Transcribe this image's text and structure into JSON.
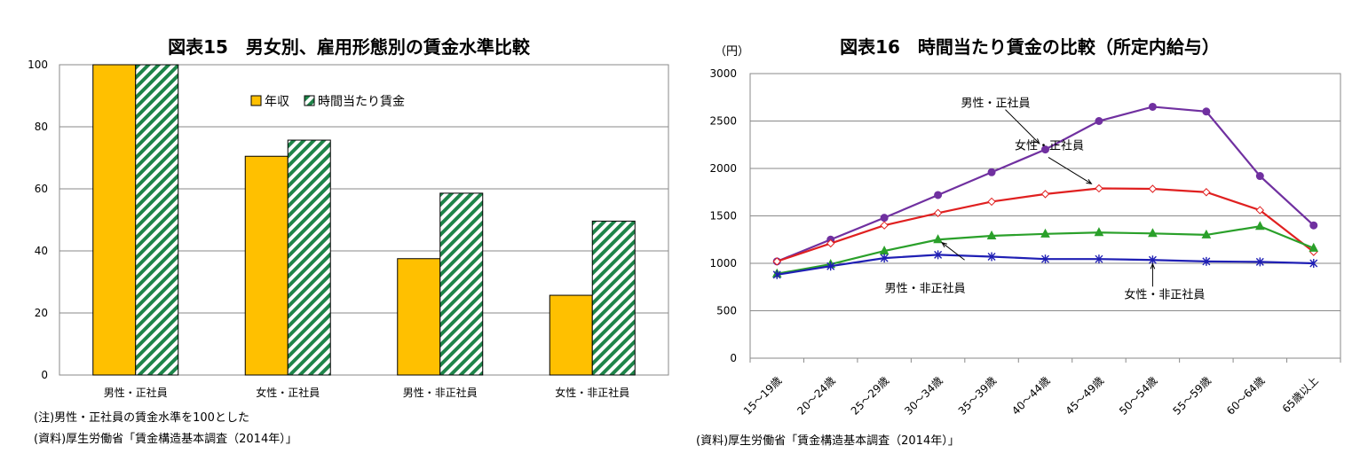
{
  "charts": {
    "left": {
      "title": "図表15　男女別、雇用形態別の賃金水準比較",
      "notes": [
        "(注)男性・正社員の賃金水準を100とした",
        "(資料)厚生労働省「賃金構造基本調査（2014年）」"
      ],
      "legend": [
        "年収",
        "時間当たり賃金"
      ]
    },
    "right": {
      "title": "図表16　時間当たり賃金の比較（所定内給与）",
      "unit": "（円）",
      "notes": [
        "(資料)厚生労働省「賃金構造基本調査（2014年）」"
      ],
      "series_labels": [
        "男性・正社員",
        "女性・正社員",
        "男性・非正社員",
        "女性・非正社員"
      ]
    }
  },
  "chart_data": [
    {
      "type": "bar",
      "title": "図表15　男女別、雇用形態別の賃金水準比較",
      "categories": [
        "男性・正社員",
        "女性・正社員",
        "男性・非正社員",
        "女性・非正社員"
      ],
      "series": [
        {
          "name": "年収",
          "values": [
            100,
            70.5,
            37.5,
            25.7
          ],
          "color": "#FFC000"
        },
        {
          "name": "時間当たり賃金",
          "values": [
            100,
            75.7,
            58.6,
            49.6
          ],
          "color": "#1E8449"
        }
      ],
      "ylim": [
        0,
        100
      ],
      "yticks": [
        0,
        20,
        40,
        60,
        80,
        100
      ],
      "xlabel": "",
      "ylabel": "",
      "legend_position": "top-center"
    },
    {
      "type": "line",
      "title": "図表16　時間当たり賃金の比較（所定内給与）",
      "categories": [
        "15～19歳",
        "20～24歳",
        "25～29歳",
        "30～34歳",
        "35～39歳",
        "40～44歳",
        "45～49歳",
        "50～54歳",
        "55～59歳",
        "60～64歳",
        "65歳以上"
      ],
      "series": [
        {
          "name": "男性・正社員",
          "values": [
            1020,
            1250,
            1480,
            1720,
            1960,
            2200,
            2500,
            2650,
            2600,
            1920,
            1400
          ],
          "color": "#7030A0",
          "marker": "circle"
        },
        {
          "name": "女性・正社員",
          "values": [
            1020,
            1210,
            1400,
            1530,
            1650,
            1730,
            1790,
            1785,
            1750,
            1560,
            1120
          ],
          "color": "#E02020",
          "marker": "diamond"
        },
        {
          "name": "男性・非正社員",
          "values": [
            890,
            990,
            1130,
            1250,
            1290,
            1310,
            1325,
            1315,
            1300,
            1390,
            1160
          ],
          "color": "#2AA02A",
          "marker": "triangle"
        },
        {
          "name": "女性・非正社員",
          "values": [
            880,
            970,
            1055,
            1090,
            1070,
            1045,
            1045,
            1035,
            1020,
            1015,
            1000
          ],
          "color": "#1F1FB4",
          "marker": "star"
        }
      ],
      "ylim": [
        0,
        3000
      ],
      "yticks": [
        0,
        500,
        1000,
        1500,
        2000,
        2500,
        3000
      ],
      "xlabel": "",
      "ylabel": "（円）"
    }
  ]
}
